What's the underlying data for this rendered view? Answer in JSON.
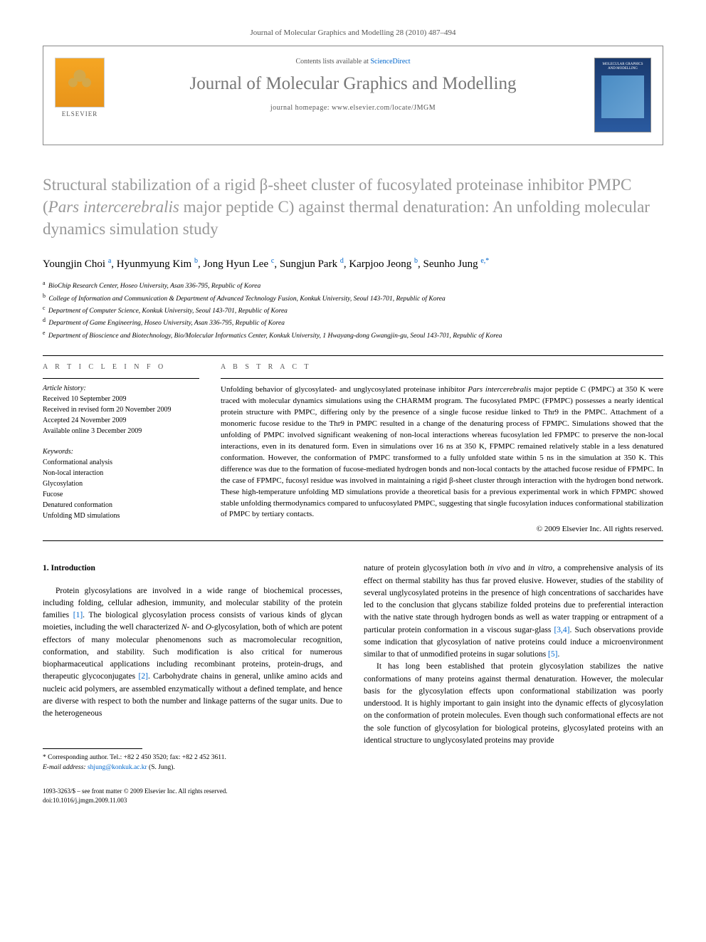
{
  "header": {
    "citation": "Journal of Molecular Graphics and Modelling 28 (2010) 487–494",
    "contents_prefix": "Contents lists available at ",
    "contents_link": "ScienceDirect",
    "journal_name": "Journal of Molecular Graphics and Modelling",
    "homepage_prefix": "journal homepage: ",
    "homepage_url": "www.elsevier.com/locate/JMGM",
    "elsevier_label": "ELSEVIER",
    "cover_title": "MOLECULAR GRAPHICS AND MODELLING"
  },
  "title": "Structural stabilization of a rigid β-sheet cluster of fucosylated proteinase inhibitor PMPC (<em>Pars intercerebralis</em> major peptide C) against thermal denaturation: An unfolding molecular dynamics simulation study",
  "authors": [
    {
      "name": "Youngjin Choi",
      "aff": "a"
    },
    {
      "name": "Hyunmyung Kim",
      "aff": "b"
    },
    {
      "name": "Jong Hyun Lee",
      "aff": "c"
    },
    {
      "name": "Sungjun Park",
      "aff": "d"
    },
    {
      "name": "Karpjoo Jeong",
      "aff": "b"
    },
    {
      "name": "Seunho Jung",
      "aff": "e,*"
    }
  ],
  "affiliations": [
    {
      "key": "a",
      "text": "BioChip Research Center, Hoseo University, Asan 336-795, Republic of Korea"
    },
    {
      "key": "b",
      "text": "College of Information and Communication & Department of Advanced Technology Fusion, Konkuk University, Seoul 143-701, Republic of Korea"
    },
    {
      "key": "c",
      "text": "Department of Computer Science, Konkuk University, Seoul 143-701, Republic of Korea"
    },
    {
      "key": "d",
      "text": "Department of Game Engineering, Hoseo University, Asan 336-795, Republic of Korea"
    },
    {
      "key": "e",
      "text": "Department of Bioscience and Biotechnology, Bio/Molecular Informatics Center, Konkuk University, 1 Hwayang-dong Gwangjin-gu, Seoul 143-701, Republic of Korea"
    }
  ],
  "article_info": {
    "heading": "A R T I C L E   I N F O",
    "history_head": "Article history:",
    "history": [
      "Received 10 September 2009",
      "Received in revised form 20 November 2009",
      "Accepted 24 November 2009",
      "Available online 3 December 2009"
    ],
    "keywords_head": "Keywords:",
    "keywords": [
      "Conformational analysis",
      "Non-local interaction",
      "Glycosylation",
      "Fucose",
      "Denatured conformation",
      "Unfolding MD simulations"
    ]
  },
  "abstract": {
    "heading": "A B S T R A C T",
    "text": "Unfolding behavior of glycosylated- and unglycosylated proteinase inhibitor <em>Pars intercerebralis</em> major peptide C (PMPC) at 350 K were traced with molecular dynamics simulations using the CHARMM program. The fucosylated PMPC (FPMPC) possesses a nearly identical protein structure with PMPC, differing only by the presence of a single fucose residue linked to Thr9 in the PMPC. Attachment of a monomeric fucose residue to the Thr9 in PMPC resulted in a change of the denaturing process of FPMPC. Simulations showed that the unfolding of PMPC involved significant weakening of non-local interactions whereas fucosylation led FPMPC to preserve the non-local interactions, even in its denatured form. Even in simulations over 16 ns at 350 K, FPMPC remained relatively stable in a less denatured conformation. However, the conformation of PMPC transformed to a fully unfolded state within 5 ns in the simulation at 350 K. This difference was due to the formation of fucose-mediated hydrogen bonds and non-local contacts by the attached fucose residue of FPMPC. In the case of FPMPC, fucosyl residue was involved in maintaining a rigid β-sheet cluster through interaction with the hydrogen bond network. These high-temperature unfolding MD simulations provide a theoretical basis for a previous experimental work in which FPMPC showed stable unfolding thermodynamics compared to unfucosylated PMPC, suggesting that single fucosylation induces conformational stabilization of PMPC by tertiary contacts.",
    "copyright": "© 2009 Elsevier Inc. All rights reserved."
  },
  "body": {
    "heading": "1. Introduction",
    "left_para": "Protein glycosylations are involved in a wide range of biochemical processes, including folding, cellular adhesion, immunity, and molecular stability of the protein families <a class=\"ref-link\" href=\"#\">[1]</a>. The biological glycosylation process consists of various kinds of glycan moieties, including the well characterized <em>N</em>- and <em>O</em>-glycosylation, both of which are potent effectors of many molecular phenomenons such as macromolecular recognition, conformation, and stability. Such modification is also critical for numerous biopharmaceutical applications including recombinant proteins, protein-drugs, and therapeutic glycoconjugates <a class=\"ref-link\" href=\"#\">[2]</a>. Carbohydrate chains in general, unlike amino acids and nucleic acid polymers, are assembled enzymatically without a defined template, and hence are diverse with respect to both the number and linkage patterns of the sugar units. Due to the heterogeneous",
    "right_para1": "nature of protein glycosylation both <em>in vivo</em> and <em>in vitro</em>, a comprehensive analysis of its effect on thermal stability has thus far proved elusive. However, studies of the stability of several unglycosylated proteins in the presence of high concentrations of saccharides have led to the conclusion that glycans stabilize folded proteins due to preferential interaction with the native state through hydrogen bonds as well as water trapping or entrapment of a particular protein conformation in a viscous sugar-glass <a class=\"ref-link\" href=\"#\">[3,4]</a>. Such observations provide some indication that glycosylation of native proteins could induce a microenvironment similar to that of unmodified proteins in sugar solutions <a class=\"ref-link\" href=\"#\">[5]</a>.",
    "right_para2": "It has long been established that protein glycosylation stabilizes the native conformations of many proteins against thermal denaturation. However, the molecular basis for the glycosylation effects upon conformational stabilization was poorly understood. It is highly important to gain insight into the dynamic effects of glycosylation on the conformation of protein molecules. Even though such conformational effects are not the sole function of glycosylation for biological proteins, glycosylated proteins with an identical structure to unglycosylated proteins may provide"
  },
  "footnote": {
    "corresponding": "* Corresponding author. Tel.: +82 2 450 3520; fax: +82 2 452 3611.",
    "email_label": "E-mail address:",
    "email": "shjung@konkuk.ac.kr",
    "email_suffix": "(S. Jung)."
  },
  "bottom": {
    "line1": "1093-3263/$ – see front matter © 2009 Elsevier Inc. All rights reserved.",
    "line2": "doi:10.1016/j.jmgm.2009.11.003"
  },
  "colors": {
    "title_grey": "#989898",
    "link_blue": "#0066cc",
    "header_grey": "#777777"
  }
}
